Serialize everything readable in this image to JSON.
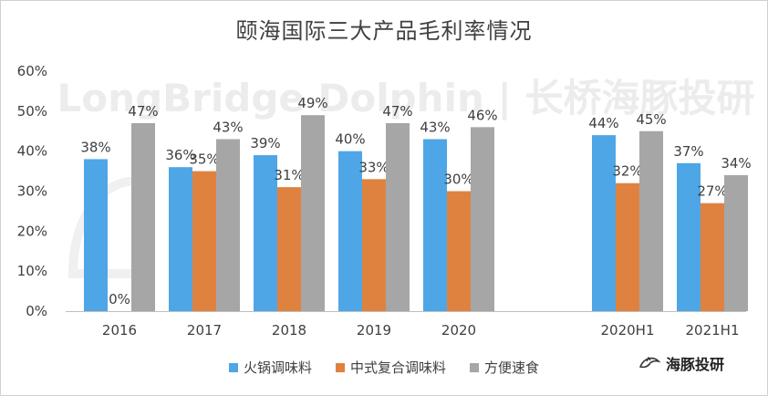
{
  "chart_data": {
    "type": "bar",
    "title": "颐海国际三大产品毛利率情况",
    "watermark": "LongBridge Dolphin | 长桥海豚投研",
    "categories": [
      "2016",
      "2017",
      "2018",
      "2019",
      "2020",
      "2020H1",
      "2021H1"
    ],
    "series": [
      {
        "name": "火锅调味料",
        "color": "#4EA6E6",
        "values": [
          0.38,
          0.36,
          0.39,
          0.4,
          0.43,
          0.44,
          0.37
        ],
        "labels": [
          "38%",
          "36%",
          "39%",
          "40%",
          "43%",
          "44%",
          "37%"
        ]
      },
      {
        "name": "中式复合调味料",
        "color": "#E0823F",
        "values": [
          0.0,
          0.35,
          0.31,
          0.33,
          0.3,
          0.32,
          0.27
        ],
        "labels": [
          "0%",
          "35%",
          "31%",
          "33%",
          "30%",
          "32%",
          "27%"
        ]
      },
      {
        "name": "方便速食",
        "color": "#A6A6A6",
        "values": [
          0.47,
          0.43,
          0.49,
          0.47,
          0.46,
          0.45,
          0.34
        ],
        "labels": [
          "47%",
          "43%",
          "49%",
          "47%",
          "46%",
          "45%",
          "34%"
        ]
      }
    ],
    "ylim": [
      0,
      0.6
    ],
    "yticks": [
      0,
      0.1,
      0.2,
      0.3,
      0.4,
      0.5,
      0.6
    ],
    "ytick_labels": [
      "0%",
      "10%",
      "20%",
      "30%",
      "40%",
      "50%",
      "60%"
    ],
    "gridlines": false,
    "legend_position": "bottom"
  },
  "brand": {
    "name": "海豚投研",
    "icon": "dolphin-icon"
  }
}
